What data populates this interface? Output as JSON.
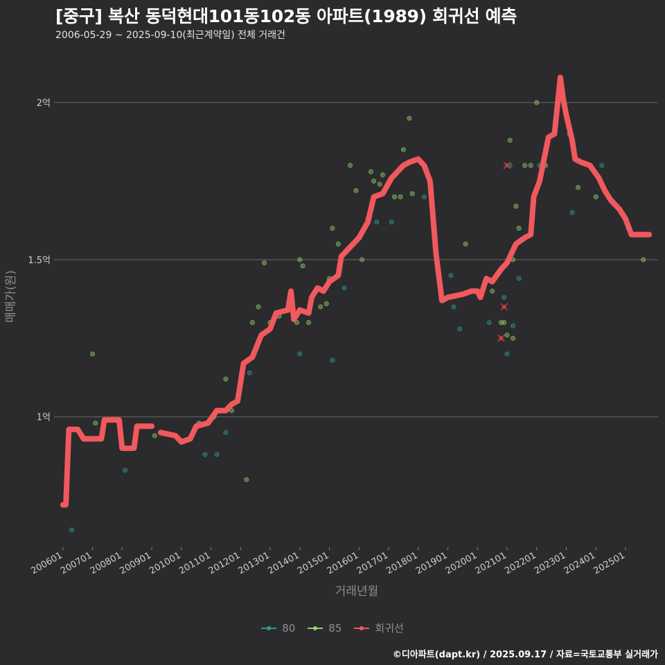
{
  "title": "[중구] 복산 동덕현대101동102동 아파트(1989) 회귀선 예측",
  "subtitle": "2006-05-29 ~ 2025-09-10(최근계약일) 전체 거래건",
  "caption": "©디아파트(dapt.kr) / 2025.09.17 / 자료=국토교통부 실거래가",
  "legend": [
    {
      "label": "80",
      "color": "#2a9d8f"
    },
    {
      "label": "85",
      "color": "#8fd16a"
    },
    {
      "label": "회귀선",
      "color": "#f0595e"
    }
  ],
  "chart_data": {
    "type": "scatter",
    "xlabel": "거래년월",
    "ylabel": "매매가(원)",
    "x_ticks": [
      "200601",
      "200701",
      "200801",
      "200901",
      "201001",
      "201101",
      "201201",
      "201301",
      "201401",
      "201501",
      "201601",
      "201701",
      "201801",
      "201901",
      "202001",
      "202101",
      "202201",
      "202301",
      "202401",
      "202501"
    ],
    "y_ticks": [
      {
        "value": 1.0,
        "label": "1억"
      },
      {
        "value": 1.5,
        "label": "1.5억"
      },
      {
        "value": 2.0,
        "label": "2억"
      }
    ],
    "ylim": [
      0.585,
      2.15
    ],
    "xlim": [
      2005.7,
      2026.1
    ],
    "grid": true,
    "legend_position": "bottom",
    "series": [
      {
        "name": "80",
        "color": "#2a9d8f",
        "points": [
          [
            2006.3,
            0.64
          ],
          [
            2008.1,
            0.83
          ],
          [
            2010.8,
            0.88
          ],
          [
            2011.2,
            0.88
          ],
          [
            2011.5,
            0.95
          ],
          [
            2012.3,
            1.14
          ],
          [
            2014.0,
            1.2
          ],
          [
            2015.1,
            1.18
          ],
          [
            2015.5,
            1.41
          ],
          [
            2016.6,
            1.62
          ],
          [
            2017.1,
            1.62
          ],
          [
            2018.2,
            1.7
          ],
          [
            2019.1,
            1.45
          ],
          [
            2019.2,
            1.35
          ],
          [
            2019.4,
            1.28
          ],
          [
            2020.4,
            1.3
          ],
          [
            2020.9,
            1.38
          ],
          [
            2021.0,
            1.2
          ],
          [
            2021.1,
            1.8
          ],
          [
            2021.2,
            1.29
          ],
          [
            2021.4,
            1.44
          ],
          [
            2022.1,
            1.8
          ],
          [
            2023.1,
            1.9
          ],
          [
            2023.2,
            1.65
          ],
          [
            2024.2,
            1.8
          ]
        ]
      },
      {
        "name": "85",
        "color": "#8fd16a",
        "points": [
          [
            2007.0,
            1.2
          ],
          [
            2007.1,
            0.98
          ],
          [
            2009.1,
            0.94
          ],
          [
            2010.6,
            0.98
          ],
          [
            2011.1,
            1.0
          ],
          [
            2011.5,
            1.12
          ],
          [
            2011.7,
            1.02
          ],
          [
            2012.2,
            0.8
          ],
          [
            2012.4,
            1.3
          ],
          [
            2012.6,
            1.35
          ],
          [
            2012.8,
            1.49
          ],
          [
            2013.0,
            1.3
          ],
          [
            2013.3,
            1.32
          ],
          [
            2013.9,
            1.3
          ],
          [
            2014.0,
            1.5
          ],
          [
            2014.1,
            1.48
          ],
          [
            2014.3,
            1.3
          ],
          [
            2014.7,
            1.35
          ],
          [
            2014.9,
            1.36
          ],
          [
            2015.0,
            1.44
          ],
          [
            2015.1,
            1.6
          ],
          [
            2015.3,
            1.55
          ],
          [
            2015.7,
            1.8
          ],
          [
            2015.9,
            1.72
          ],
          [
            2016.1,
            1.5
          ],
          [
            2016.3,
            1.63
          ],
          [
            2016.4,
            1.78
          ],
          [
            2016.5,
            1.75
          ],
          [
            2016.7,
            1.74
          ],
          [
            2016.8,
            1.77
          ],
          [
            2017.2,
            1.7
          ],
          [
            2017.4,
            1.7
          ],
          [
            2017.5,
            1.85
          ],
          [
            2017.7,
            1.95
          ],
          [
            2017.8,
            1.71
          ],
          [
            2019.6,
            1.55
          ],
          [
            2020.5,
            1.4
          ],
          [
            2020.8,
            1.3
          ],
          [
            2020.9,
            1.3
          ],
          [
            2021.0,
            1.26
          ],
          [
            2021.2,
            1.25
          ],
          [
            2021.2,
            1.5
          ],
          [
            2021.1,
            1.88
          ],
          [
            2021.3,
            1.67
          ],
          [
            2021.4,
            1.6
          ],
          [
            2021.6,
            1.8
          ],
          [
            2021.8,
            1.8
          ],
          [
            2022.0,
            2.0
          ],
          [
            2022.3,
            1.8
          ],
          [
            2022.6,
            1.9
          ],
          [
            2023.4,
            1.73
          ],
          [
            2024.0,
            1.7
          ],
          [
            2025.1,
            1.6
          ],
          [
            2025.6,
            1.5
          ]
        ]
      },
      {
        "name": "회귀선",
        "color": "#f0595e",
        "points": [
          [
            2006.0,
            0.72
          ],
          [
            2006.1,
            0.72
          ],
          [
            2006.2,
            0.96
          ],
          [
            2006.5,
            0.96
          ],
          [
            2006.7,
            0.93
          ],
          [
            2007.3,
            0.93
          ],
          [
            2007.4,
            0.99
          ],
          [
            2007.9,
            0.99
          ],
          [
            2008.0,
            0.9
          ],
          [
            2008.4,
            0.9
          ],
          [
            2008.5,
            0.97
          ],
          [
            2009.0,
            0.97
          ],
          null,
          [
            2009.3,
            0.95
          ],
          [
            2009.8,
            0.94
          ],
          [
            2010.0,
            0.92
          ],
          [
            2010.3,
            0.93
          ],
          [
            2010.5,
            0.97
          ],
          [
            2010.9,
            0.98
          ],
          [
            2011.2,
            1.02
          ],
          [
            2011.5,
            1.02
          ],
          [
            2011.7,
            1.04
          ],
          [
            2011.9,
            1.05
          ],
          [
            2012.1,
            1.17
          ],
          [
            2012.4,
            1.19
          ],
          [
            2012.7,
            1.26
          ],
          [
            2013.0,
            1.28
          ],
          [
            2013.2,
            1.33
          ],
          [
            2013.6,
            1.34
          ],
          [
            2013.7,
            1.4
          ],
          [
            2013.8,
            1.31
          ],
          [
            2014.0,
            1.34
          ],
          [
            2014.3,
            1.33
          ],
          [
            2014.4,
            1.38
          ],
          [
            2014.6,
            1.41
          ],
          [
            2014.8,
            1.4
          ],
          [
            2015.0,
            1.43
          ],
          [
            2015.3,
            1.45
          ],
          [
            2015.4,
            1.51
          ],
          [
            2015.6,
            1.53
          ],
          [
            2016.0,
            1.57
          ],
          [
            2016.3,
            1.62
          ],
          [
            2016.5,
            1.7
          ],
          [
            2016.8,
            1.71
          ],
          [
            2017.1,
            1.76
          ],
          [
            2017.5,
            1.8
          ],
          [
            2017.7,
            1.81
          ],
          [
            2018.0,
            1.82
          ],
          [
            2018.2,
            1.8
          ],
          [
            2018.4,
            1.75
          ],
          [
            2018.6,
            1.52
          ],
          [
            2018.8,
            1.37
          ],
          [
            2019.0,
            1.38
          ],
          [
            2019.5,
            1.39
          ],
          [
            2019.8,
            1.4
          ],
          [
            2020.0,
            1.4
          ],
          [
            2020.1,
            1.38
          ],
          [
            2020.3,
            1.44
          ],
          [
            2020.5,
            1.43
          ],
          [
            2020.8,
            1.47
          ],
          [
            2021.0,
            1.49
          ],
          [
            2021.3,
            1.55
          ],
          [
            2021.6,
            1.57
          ],
          [
            2021.8,
            1.58
          ],
          [
            2021.9,
            1.7
          ],
          [
            2022.1,
            1.75
          ],
          [
            2022.4,
            1.89
          ],
          [
            2022.6,
            1.9
          ],
          [
            2022.8,
            2.08
          ],
          [
            2022.9,
            2.01
          ],
          [
            2023.0,
            1.96
          ],
          [
            2023.2,
            1.88
          ],
          [
            2023.3,
            1.82
          ],
          [
            2023.5,
            1.81
          ],
          [
            2023.8,
            1.8
          ],
          [
            2024.1,
            1.76
          ],
          [
            2024.3,
            1.72
          ],
          [
            2024.5,
            1.69
          ],
          [
            2024.8,
            1.66
          ],
          [
            2025.0,
            1.63
          ],
          [
            2025.2,
            1.58
          ],
          [
            2025.5,
            1.58
          ],
          [
            2025.8,
            1.58
          ]
        ]
      }
    ],
    "outliers": [
      [
        2021.0,
        1.8
      ],
      [
        2020.9,
        1.35
      ],
      [
        2020.8,
        1.25
      ]
    ]
  }
}
